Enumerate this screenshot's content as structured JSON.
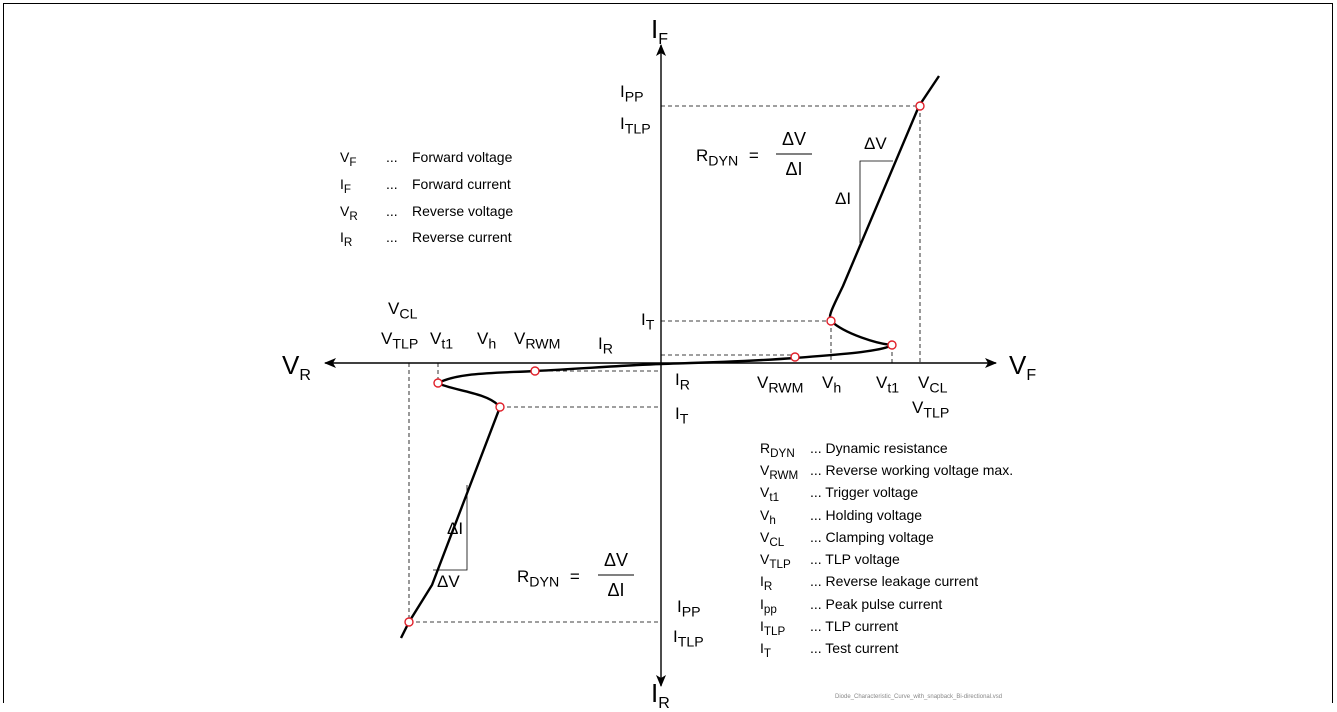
{
  "axes": {
    "if": [
      "I",
      "F"
    ],
    "ir": [
      "I",
      "R"
    ],
    "vr": [
      "V",
      "R"
    ],
    "vf": [
      "V",
      "F"
    ]
  },
  "forward_labels": {
    "ipp": [
      "I",
      "PP"
    ],
    "itlp": [
      "I",
      "TLP"
    ],
    "it": [
      "I",
      "T"
    ],
    "ir": [
      "I",
      "R"
    ],
    "vrwm": [
      "V",
      "RWM"
    ],
    "vh": [
      "V",
      "h"
    ],
    "vt1": [
      "V",
      "t1"
    ],
    "vcl": [
      "V",
      "CL"
    ],
    "vtlp": [
      "V",
      "TLP"
    ]
  },
  "reverse_labels": {
    "vcl": [
      "V",
      "CL"
    ],
    "vtlp": [
      "V",
      "TLP"
    ],
    "vt1": [
      "V",
      "t1"
    ],
    "vh": [
      "V",
      "h"
    ],
    "vrwm": [
      "V",
      "RWM"
    ],
    "ir": [
      "I",
      "R"
    ],
    "it": [
      "I",
      "T"
    ],
    "ipp": [
      "I",
      "PP"
    ],
    "itlp": [
      "I",
      "TLP"
    ]
  },
  "slope": {
    "dv": "ΔV",
    "di": "ΔI",
    "rdyn": [
      "R",
      "DYN"
    ],
    "equals": "="
  },
  "legend_top": [
    {
      "sym": "V",
      "sub": "F",
      "dots": "...",
      "text": "Forward voltage"
    },
    {
      "sym": "I",
      "sub": "F",
      "dots": "...",
      "text": "Forward current"
    },
    {
      "sym": "V",
      "sub": "R",
      "dots": "...",
      "text": "Reverse voltage"
    },
    {
      "sym": "I",
      "sub": "R",
      "dots": "...",
      "text": "Reverse current"
    }
  ],
  "legend_bottom": [
    {
      "sym": "R",
      "sub": "DYN",
      "text": "... Dynamic resistance"
    },
    {
      "sym": "V",
      "sub": "RWM",
      "text": "... Reverse working voltage max."
    },
    {
      "sym": "V",
      "sub": "t1",
      "text": "... Trigger voltage"
    },
    {
      "sym": "V",
      "sub": "h",
      "text": "... Holding voltage"
    },
    {
      "sym": "V",
      "sub": "CL",
      "text": "... Clamping voltage"
    },
    {
      "sym": "V",
      "sub": "TLP",
      "text": "... TLP voltage"
    },
    {
      "sym": "I",
      "sub": "R",
      "text": "... Reverse leakage current"
    },
    {
      "sym": "I",
      "sub": "pp",
      "text": "... Peak pulse current"
    },
    {
      "sym": "I",
      "sub": "TLP",
      "text": "... TLP current"
    },
    {
      "sym": "I",
      "sub": "T",
      "text": "... Test current"
    }
  ],
  "footer_note": "Diode_Characteristic_Curve_with_snapback_Bi-directional.vsd",
  "colors": {
    "curve": "#000000",
    "marker": "#e0202a",
    "guide": "#000000"
  }
}
